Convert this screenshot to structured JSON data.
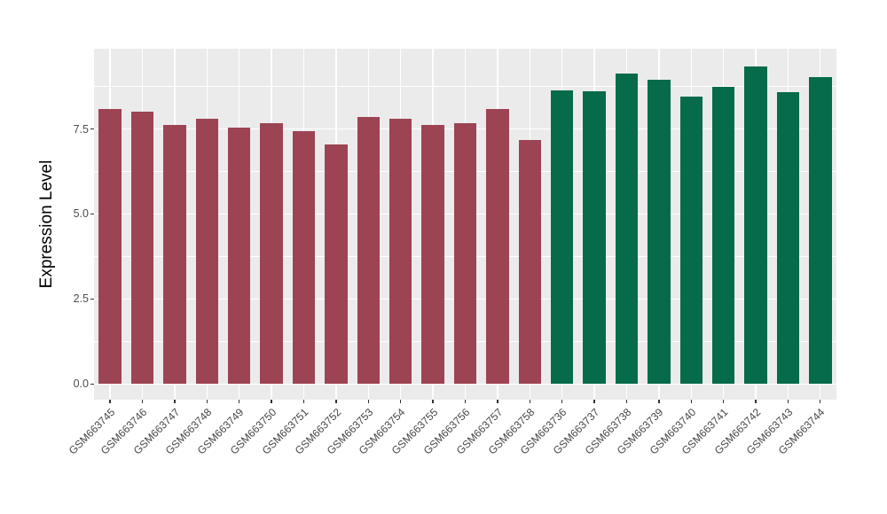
{
  "chart_data": {
    "type": "bar",
    "title": "",
    "ylabel": "Expression Level",
    "xlabel": "",
    "legend": "none",
    "grid": true,
    "ylim": [
      0,
      9.9
    ],
    "ytick_values": [
      0,
      2.5,
      5,
      7.5
    ],
    "ytick_labels": [
      "0.0",
      "2.5",
      "5.0",
      "7.5"
    ],
    "minor_gridline_values": [
      1.25,
      3.75,
      6.25,
      8.75
    ],
    "panel_background": "#EBEBEB",
    "gridline_color": "#FFFFFF",
    "palette": {
      "group1": "#9C4453",
      "group2": "#056B4B"
    },
    "bars": [
      {
        "label": "GSM663745",
        "value": 8.1,
        "group": "group1"
      },
      {
        "label": "GSM663746",
        "value": 8.0,
        "group": "group1"
      },
      {
        "label": "GSM663747",
        "value": 7.63,
        "group": "group1"
      },
      {
        "label": "GSM663748",
        "value": 7.79,
        "group": "group1"
      },
      {
        "label": "GSM663749",
        "value": 7.54,
        "group": "group1"
      },
      {
        "label": "GSM663750",
        "value": 7.67,
        "group": "group1"
      },
      {
        "label": "GSM663751",
        "value": 7.44,
        "group": "group1"
      },
      {
        "label": "GSM663752",
        "value": 7.04,
        "group": "group1"
      },
      {
        "label": "GSM663753",
        "value": 7.85,
        "group": "group1"
      },
      {
        "label": "GSM663754",
        "value": 7.79,
        "group": "group1"
      },
      {
        "label": "GSM663755",
        "value": 7.61,
        "group": "group1"
      },
      {
        "label": "GSM663756",
        "value": 7.66,
        "group": "group1"
      },
      {
        "label": "GSM663757",
        "value": 8.1,
        "group": "group1"
      },
      {
        "label": "GSM663758",
        "value": 7.18,
        "group": "group1"
      },
      {
        "label": "GSM663736",
        "value": 8.63,
        "group": "group2"
      },
      {
        "label": "GSM663737",
        "value": 8.61,
        "group": "group2"
      },
      {
        "label": "GSM663738",
        "value": 9.14,
        "group": "group2"
      },
      {
        "label": "GSM663739",
        "value": 8.95,
        "group": "group2"
      },
      {
        "label": "GSM663740",
        "value": 8.44,
        "group": "group2"
      },
      {
        "label": "GSM663741",
        "value": 8.74,
        "group": "group2"
      },
      {
        "label": "GSM663742",
        "value": 9.35,
        "group": "group2"
      },
      {
        "label": "GSM663743",
        "value": 8.59,
        "group": "group2"
      },
      {
        "label": "GSM663744",
        "value": 9.02,
        "group": "group2"
      }
    ]
  }
}
